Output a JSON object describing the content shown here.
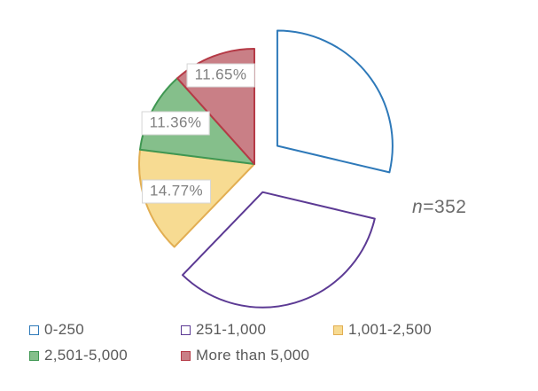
{
  "chart_data": {
    "type": "pie",
    "title": "",
    "annotation": {
      "italic": "n",
      "rest": "=352"
    },
    "n": 352,
    "direction": "clockwise",
    "start_angle_deg": 0,
    "legend_position": "bottom",
    "slices": [
      {
        "label": "0-250",
        "value_pct": 28.69,
        "data_label": null,
        "fill": "#ffffff",
        "stroke": "#2e79b9",
        "exploded": true
      },
      {
        "label": "251-1,000",
        "value_pct": 33.52,
        "data_label": null,
        "fill": "#ffffff",
        "stroke": "#5c3a94",
        "exploded": true
      },
      {
        "label": "1,001-2,500",
        "value_pct": 14.77,
        "data_label": "14.77%",
        "fill": "#f7db92",
        "stroke": "#e2ae52",
        "exploded": false
      },
      {
        "label": "2,501-5,000",
        "value_pct": 11.36,
        "data_label": "11.36%",
        "fill": "#85bf8b",
        "stroke": "#3f9752",
        "exploded": false
      },
      {
        "label": "More than 5,000",
        "value_pct": 11.65,
        "data_label": "11.65%",
        "fill": "#c97f86",
        "stroke": "#b53a46",
        "exploded": false
      }
    ],
    "colors": {
      "data_label_text": "#7f7f7f",
      "data_label_border": "#d6d6d6",
      "legend_text": "#595959",
      "annotation_text": "#6b6b6b",
      "background": "#ffffff"
    }
  }
}
